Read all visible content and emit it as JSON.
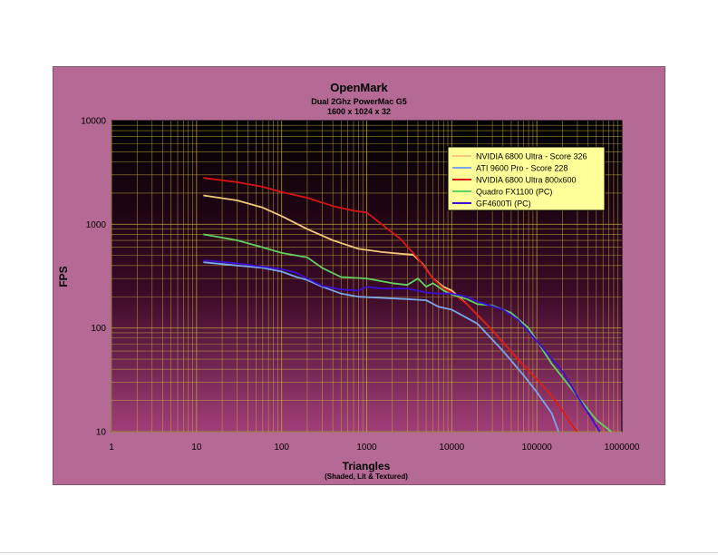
{
  "chart_data": {
    "type": "line",
    "title": "OpenMark",
    "subtitle_lines": [
      "Dual 2Ghz PowerMac G5",
      "1600 x 1024 x 32"
    ],
    "xlabel": "Triangles",
    "xlabel_sub": "(Shaded, Lit & Textured)",
    "ylabel": "FPS",
    "x_scale": "log",
    "y_scale": "log",
    "xlim": [
      1,
      1000000
    ],
    "ylim": [
      10,
      10000
    ],
    "x_ticks": [
      "1",
      "10",
      "100",
      "1000",
      "10000",
      "100000",
      "1000000"
    ],
    "y_ticks": [
      "10",
      "100",
      "1000",
      "10000"
    ],
    "grid": true,
    "legend_position": "top-right",
    "series": [
      {
        "name": "NVIDIA 6800 Ultra - Score 326",
        "color": "#f3c97c",
        "x": [
          12,
          30,
          60,
          100,
          200,
          400,
          800,
          1500,
          2500,
          3500,
          4500,
          6000,
          8000,
          10000,
          15000,
          30000,
          60000,
          100000,
          150000,
          200000,
          250000,
          300000
        ],
        "y": [
          1900,
          1700,
          1450,
          1200,
          900,
          700,
          580,
          540,
          520,
          510,
          420,
          300,
          250,
          230,
          170,
          95,
          50,
          32,
          22,
          16,
          12,
          10
        ]
      },
      {
        "name": "ATI 9600 Pro - Score 228",
        "color": "#7aa6ec",
        "x": [
          12,
          30,
          60,
          100,
          150,
          200,
          300,
          500,
          800,
          1500,
          3000,
          5000,
          7000,
          10000,
          20000,
          40000,
          70000,
          100000,
          150000,
          180000
        ],
        "y": [
          430,
          400,
          380,
          350,
          310,
          290,
          250,
          215,
          200,
          195,
          190,
          185,
          160,
          150,
          110,
          60,
          35,
          24,
          15,
          10
        ]
      },
      {
        "name": "NVIDIA 6800 Ultra 800x600",
        "color": "#d81313",
        "x": [
          12,
          30,
          60,
          100,
          200,
          400,
          700,
          1000,
          1500,
          2500,
          4000,
          6000,
          8000,
          10000,
          15000,
          30000,
          60000,
          100000,
          150000,
          200000,
          250000,
          300000
        ],
        "y": [
          2800,
          2550,
          2300,
          2050,
          1800,
          1500,
          1350,
          1300,
          1000,
          720,
          470,
          300,
          240,
          220,
          170,
          95,
          50,
          32,
          22,
          16,
          12,
          10
        ]
      },
      {
        "name": "Quadro FX1100 (PC)",
        "color": "#62d162",
        "x": [
          12,
          30,
          60,
          100,
          150,
          200,
          300,
          500,
          1000,
          2000,
          3000,
          4000,
          5000,
          6000,
          8000,
          10000,
          15000,
          20000,
          30000,
          50000,
          80000,
          150000,
          300000,
          500000,
          750000
        ],
        "y": [
          800,
          700,
          600,
          530,
          500,
          480,
          380,
          310,
          300,
          270,
          260,
          300,
          250,
          270,
          230,
          210,
          190,
          170,
          165,
          140,
          100,
          45,
          22,
          13,
          10
        ]
      },
      {
        "name": "GF4600Ti (PC)",
        "color": "#3a0fd1",
        "x": [
          12,
          30,
          60,
          100,
          150,
          200,
          300,
          500,
          800,
          1000,
          1500,
          3000,
          5000,
          7000,
          10000,
          15000,
          20000,
          40000,
          60000,
          100000,
          200000,
          300000,
          450000,
          550000
        ],
        "y": [
          450,
          420,
          390,
          370,
          340,
          300,
          255,
          235,
          230,
          250,
          240,
          240,
          220,
          215,
          215,
          200,
          180,
          150,
          120,
          75,
          38,
          22,
          13,
          10
        ]
      }
    ]
  }
}
